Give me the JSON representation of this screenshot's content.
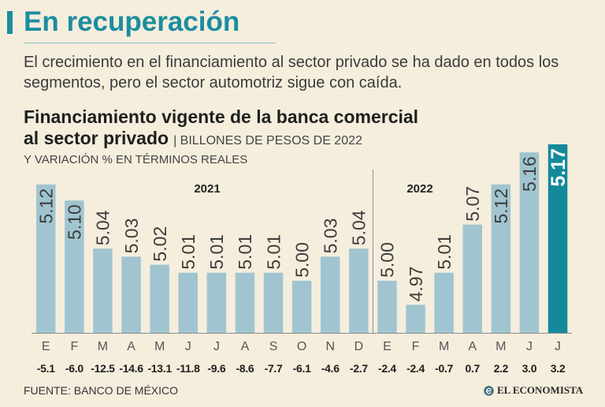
{
  "header": {
    "title": "En recuperación",
    "subtitle": "El crecimiento en el financiamiento al sector privado se ha dado en todos los segmentos, pero el sector automotriz sigue con caída."
  },
  "chart_data": {
    "type": "bar",
    "title_line1": "Financiamiento vigente de la banca comercial",
    "title_line2": "al sector privado",
    "unit": "| BILLONES DE PESOS DE 2022",
    "subunit": "Y VARIACIÓN % EN TÉRMINOS REALES",
    "year_groups": [
      {
        "label": "2021",
        "count": 12
      },
      {
        "label": "2022",
        "count": 7
      }
    ],
    "categories": [
      "E",
      "F",
      "M",
      "A",
      "M",
      "J",
      "J",
      "A",
      "S",
      "O",
      "N",
      "D",
      "E",
      "F",
      "M",
      "A",
      "M",
      "J",
      "J"
    ],
    "values": [
      5.12,
      5.1,
      5.04,
      5.03,
      5.02,
      5.01,
      5.01,
      5.01,
      5.01,
      5.0,
      5.03,
      5.04,
      5.0,
      4.97,
      5.01,
      5.07,
      5.12,
      5.16,
      5.17
    ],
    "variation_pct": [
      -5.1,
      -6.0,
      -12.5,
      -14.6,
      -13.1,
      -11.8,
      -9.6,
      -8.6,
      -7.7,
      -6.1,
      -4.6,
      -2.7,
      -2.4,
      -2.4,
      -0.7,
      0.7,
      2.2,
      3.0,
      3.2
    ],
    "highlight_index": 18
  },
  "theme": {
    "accent": "#1c8da0",
    "bar": "#a0c5d0",
    "highlight": "#14899c"
  },
  "footer": {
    "source": "FUENTE: BANCO DE MÉXICO",
    "brand": "EL ECONOMISTA"
  },
  "icons": {
    "brand_logo": "el-economista-logo-icon"
  }
}
